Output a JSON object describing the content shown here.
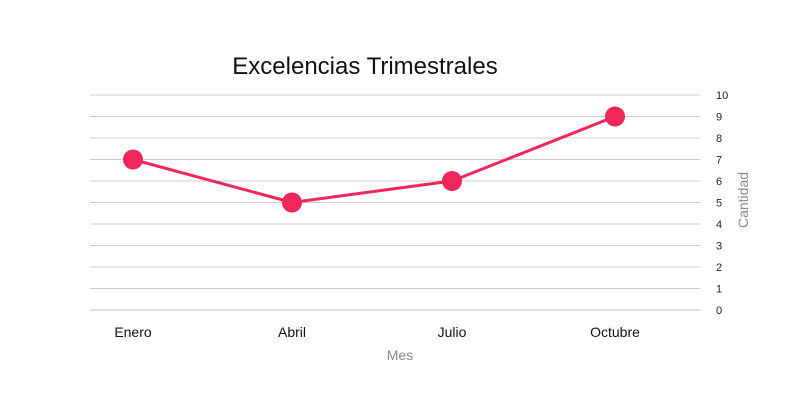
{
  "chart_data": {
    "type": "line",
    "title": "Excelencias Trimestrales",
    "xlabel": "Mes",
    "ylabel": "Cantidad",
    "categories": [
      "Enero",
      "Abril",
      "Julio",
      "Octubre"
    ],
    "series": [
      {
        "values": [
          7,
          5,
          6,
          9
        ]
      }
    ],
    "ylim": [
      0,
      10
    ],
    "yticks": [
      "0",
      "1",
      "2",
      "3",
      "4",
      "5",
      "6",
      "7",
      "8",
      "9",
      "10"
    ],
    "y_axis_side": "right",
    "grid": true,
    "legend": "none",
    "colors": {
      "line": "#f0285a",
      "gridline": "#cccccc",
      "axis_title": "#8a8a8a"
    }
  }
}
